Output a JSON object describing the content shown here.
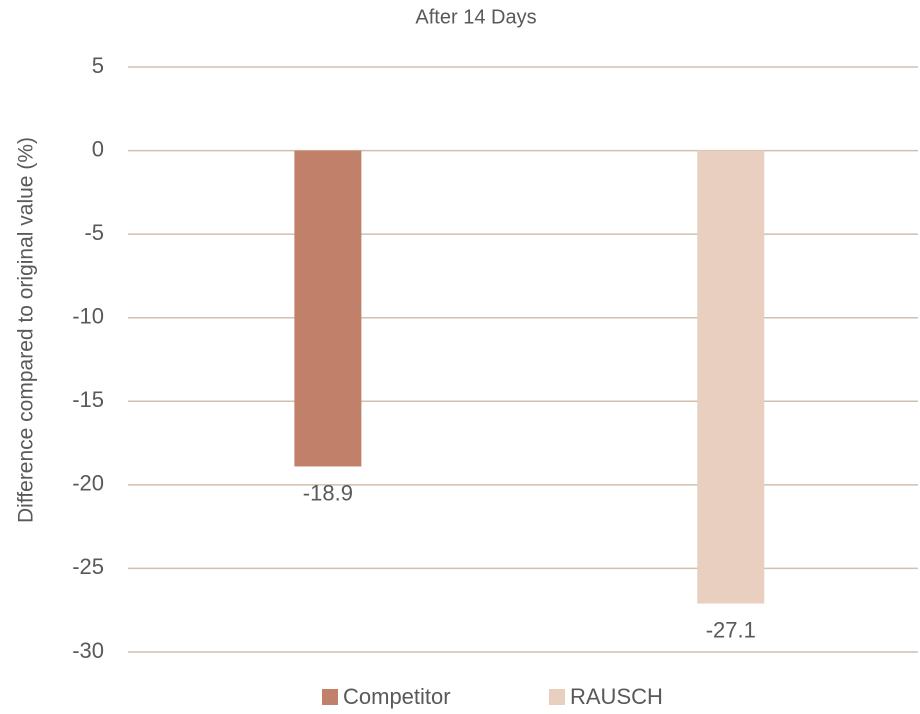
{
  "chart_data": {
    "type": "bar",
    "title": "After 14 Days",
    "y_label": "Difference compared to original value (%)",
    "categories": [
      null
    ],
    "series": [
      {
        "name": "Competitor",
        "color": "#c0806a",
        "values": [
          -18.9
        ]
      },
      {
        "name": "RAUSCH",
        "color": "#e8cfc0",
        "values": [
          -27.1
        ]
      }
    ],
    "ylim": [
      -30,
      5
    ],
    "yticks": [
      5,
      0,
      -5,
      -10,
      -15,
      -20,
      -25,
      -30
    ],
    "grid": true,
    "legend": "bottom"
  }
}
